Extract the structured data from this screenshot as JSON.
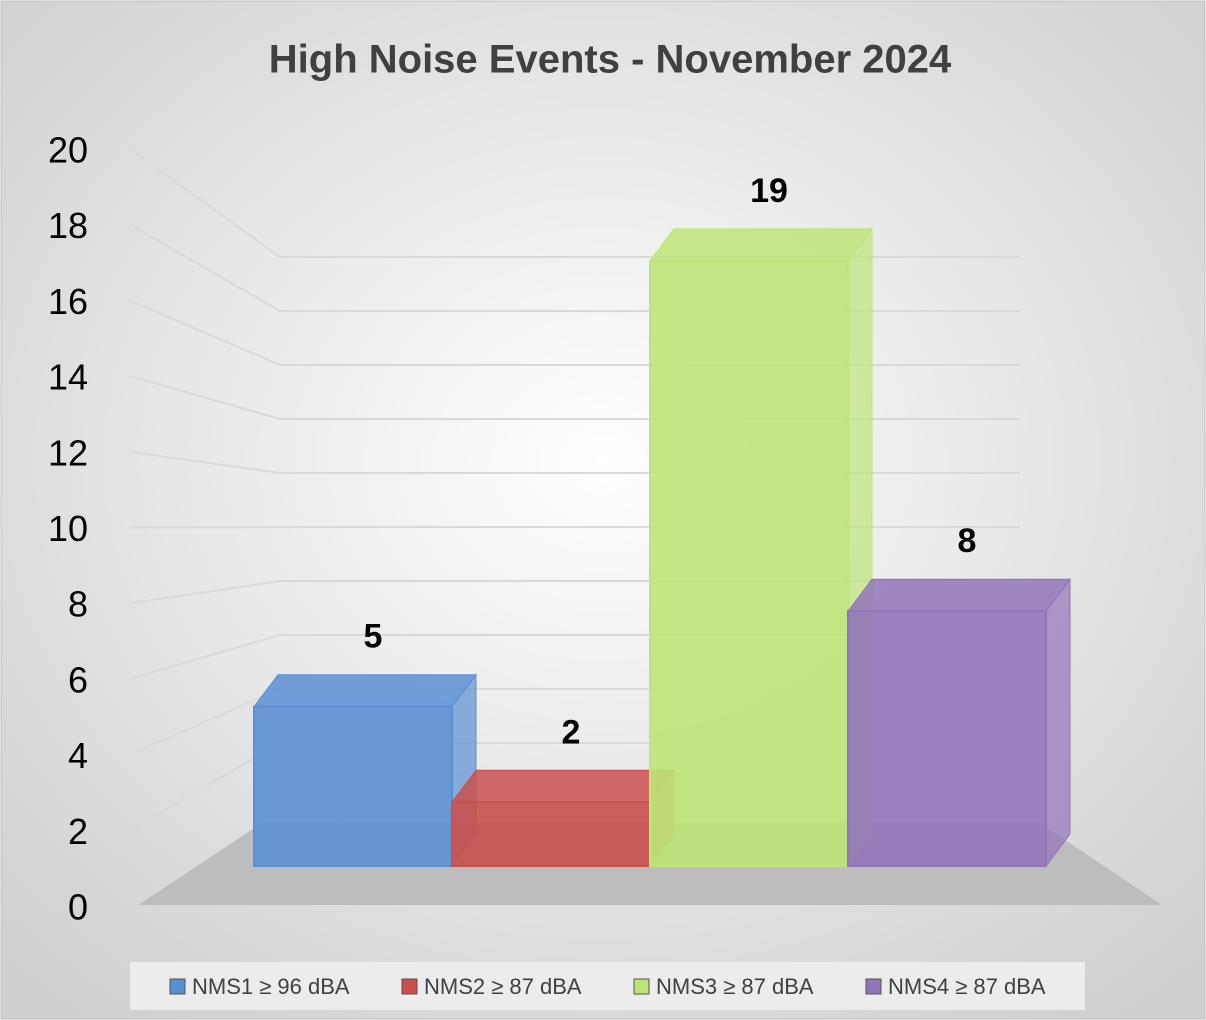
{
  "chart_data": {
    "type": "bar3d",
    "title": "High Noise Events - November 2024",
    "series": [
      {
        "name": "NMS1 ≥ 96 dBA",
        "color": "#5b8fd3",
        "values": [
          5
        ]
      },
      {
        "name": "NMS2 ≥ 87 dBA",
        "color": "#c9504d",
        "values": [
          2
        ]
      },
      {
        "name": "NMS3 ≥ 87 dBA",
        "color": "#bde477",
        "values": [
          19
        ]
      },
      {
        "name": "NMS4 ≥ 87 dBA",
        "color": "#9274b8",
        "values": [
          8
        ]
      }
    ],
    "ylim": [
      0,
      20
    ],
    "yticks": [
      0,
      2,
      4,
      6,
      8,
      10,
      12,
      14,
      16,
      18,
      20
    ],
    "grid": true,
    "legend": "bottom"
  }
}
